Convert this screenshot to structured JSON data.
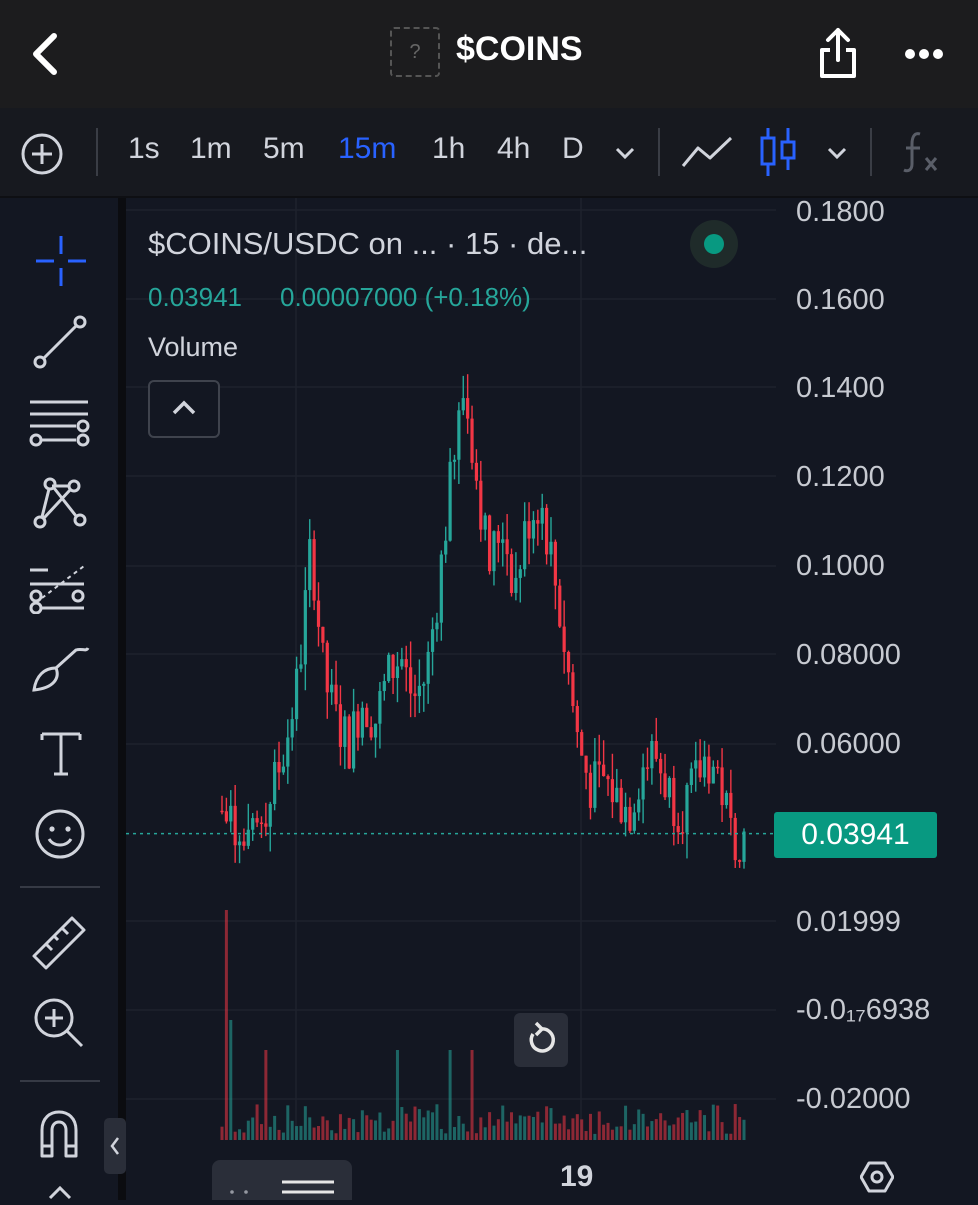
{
  "header": {
    "title": "$COINS",
    "token_icon_glyph": "?",
    "back_icon": "chevron-left-icon",
    "share_icon": "share-icon",
    "more_icon": "more-horizontal-icon"
  },
  "toolbar": {
    "timeframes": [
      "1s",
      "1m",
      "5m",
      "15m",
      "1h",
      "4h",
      "D"
    ],
    "active_timeframe": "15m"
  },
  "legend": {
    "title": "$COINS/USDC on ... · 15 · de...",
    "last_price": "0.03941",
    "change": "0.00007000 (+0.18%)",
    "volume_label": "Volume"
  },
  "price_axis": {
    "labels": [
      "0.1800",
      "0.1600",
      "0.1400",
      "0.1200",
      "0.1000",
      "0.08000",
      "0.06000",
      "0.01999",
      "-0.0₁₇6938",
      "-0.02000"
    ],
    "current_price": "0.03941"
  },
  "time_axis": {
    "label": "19"
  },
  "colors": {
    "up": "#26a69a",
    "down": "#f23645",
    "accent": "#2962ff",
    "background": "#131722"
  },
  "chart_data": {
    "type": "candlestick",
    "title": "$COINS/USDC on ... · 15 · de...",
    "current_price": 0.03941,
    "ylim": [
      -0.021,
      0.18
    ],
    "y_ticks": [
      0.18,
      0.16,
      0.14,
      0.12,
      0.1,
      0.08,
      0.06,
      0.01999,
      -6.938e-17,
      -0.02
    ],
    "x_ticks": [
      "19"
    ],
    "grid": true,
    "close_path": [
      0.045,
      0.04,
      0.035,
      0.042,
      0.05,
      0.06,
      0.075,
      0.105,
      0.075,
      0.065,
      0.06,
      0.07,
      0.065,
      0.075,
      0.08,
      0.07,
      0.075,
      0.095,
      0.12,
      0.14,
      0.12,
      0.1,
      0.11,
      0.095,
      0.11,
      0.115,
      0.1,
      0.08,
      0.06,
      0.05,
      0.052,
      0.048,
      0.045,
      0.055,
      0.058,
      0.05,
      0.045,
      0.05,
      0.057,
      0.053,
      0.04,
      0.039
    ]
  }
}
